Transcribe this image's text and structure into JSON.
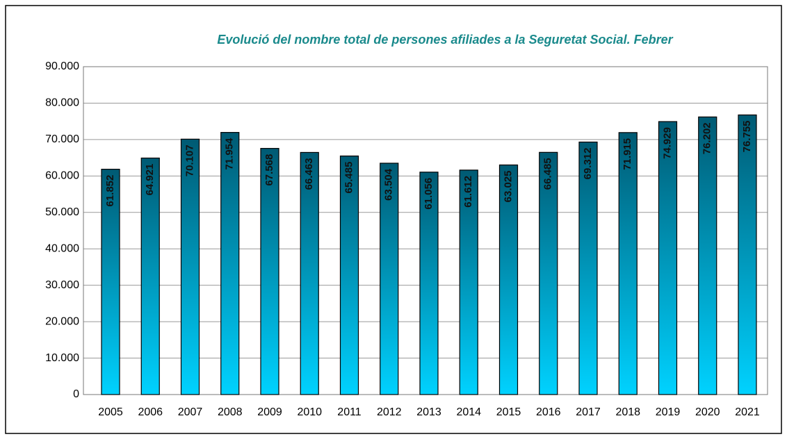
{
  "chart_data": {
    "type": "bar",
    "title": "Evolució del nombre total de persones afiliades a la Seguretat Social. Febrer",
    "categories": [
      "2005",
      "2006",
      "2007",
      "2008",
      "2009",
      "2010",
      "2011",
      "2012",
      "2013",
      "2014",
      "2015",
      "2016",
      "2017",
      "2018",
      "2019",
      "2020",
      "2021"
    ],
    "values": [
      61852,
      64921,
      70107,
      71954,
      67568,
      66463,
      65485,
      63504,
      61056,
      61612,
      63025,
      66485,
      69312,
      71915,
      74929,
      76202,
      76755
    ],
    "value_labels": [
      "61.852",
      "64.921",
      "70.107",
      "71.954",
      "67.568",
      "66.463",
      "65.485",
      "63.504",
      "61.056",
      "61.612",
      "63.025",
      "66.485",
      "69.312",
      "71.915",
      "74.929",
      "76.202",
      "76.755"
    ],
    "color": [
      "#005a73",
      "#00d2ff"
    ],
    "ylim": [
      0,
      90000
    ],
    "yticks": [
      0,
      {
        "value": 10000,
        "label": "10.000"
      },
      {
        "value": 20000,
        "label": "20.000"
      },
      {
        "value": 30000,
        "label": "30.000"
      },
      {
        "value": 40000,
        "label": "40.000"
      },
      {
        "value": 50000,
        "label": "50.000"
      },
      {
        "value": 60000,
        "label": "60.000"
      },
      {
        "value": 70000,
        "label": "70.000"
      },
      {
        "value": 80000,
        "label": "80.000"
      },
      {
        "value": 90000,
        "label": "90.000"
      }
    ],
    "grid": true
  }
}
